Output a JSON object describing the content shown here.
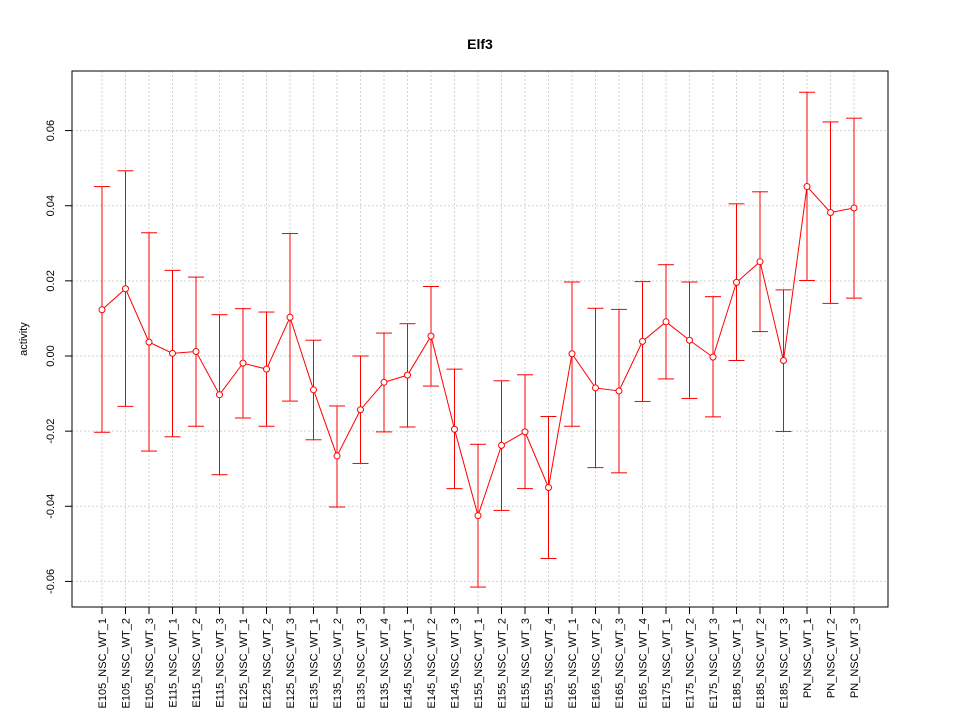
{
  "chart_data": {
    "type": "line",
    "title": "Elf3",
    "xlabel": "",
    "ylabel": "activity",
    "ylim": [
      -0.066,
      0.076
    ],
    "yticks": [
      -0.06,
      -0.04,
      -0.02,
      0.0,
      0.02,
      0.04,
      0.06
    ],
    "ytick_labels": [
      "-0.06",
      "-0.04",
      "-0.02",
      "0.00",
      "0.02",
      "0.04",
      "0.06"
    ],
    "grid": true,
    "error_bars": true,
    "color": "#ff0000",
    "categories": [
      "E105_NSC_WT_1",
      "E105_NSC_WT_2",
      "E105_NSC_WT_3",
      "E115_NSC_WT_1",
      "E115_NSC_WT_2",
      "E115_NSC_WT_3",
      "E125_NSC_WT_1",
      "E125_NSC_WT_2",
      "E125_NSC_WT_3",
      "E135_NSC_WT_1",
      "E135_NSC_WT_2",
      "E135_NSC_WT_3",
      "E135_NSC_WT_4",
      "E145_NSC_WT_1",
      "E145_NSC_WT_2",
      "E145_NSC_WT_3",
      "E155_NSC_WT_1",
      "E155_NSC_WT_2",
      "E155_NSC_WT_3",
      "E155_NSC_WT_4",
      "E165_NSC_WT_1",
      "E165_NSC_WT_2",
      "E165_NSC_WT_3",
      "E165_NSC_WT_4",
      "E175_NSC_WT_1",
      "E175_NSC_WT_2",
      "E175_NSC_WT_3",
      "E185_NSC_WT_1",
      "E185_NSC_WT_2",
      "E185_NSC_WT_3",
      "PN_NSC_WT_1",
      "PN_NSC_WT_2",
      "PN_NSC_WT_3"
    ],
    "values": [
      0.0123,
      0.0179,
      0.0037,
      0.0007,
      0.0012,
      -0.0103,
      -0.0019,
      -0.0035,
      0.0103,
      -0.009,
      -0.0266,
      -0.0143,
      -0.007,
      -0.0051,
      0.0053,
      -0.0195,
      -0.0425,
      -0.0238,
      -0.0202,
      -0.035,
      0.0006,
      -0.0085,
      -0.0093,
      0.0039,
      0.0091,
      0.0042,
      -0.0003,
      0.0196,
      0.0251,
      -0.0012,
      0.0451,
      0.0382,
      0.0394
    ],
    "upper": [
      0.0451,
      0.0493,
      0.0328,
      0.0228,
      0.021,
      0.011,
      0.0126,
      0.0117,
      0.0326,
      0.0042,
      -0.0133,
      0.0,
      0.0061,
      0.0086,
      0.0185,
      -0.0035,
      -0.0235,
      -0.0066,
      -0.005,
      -0.0161,
      0.0197,
      0.0127,
      0.0124,
      0.0198,
      0.0243,
      0.0197,
      0.0158,
      0.0405,
      0.0437,
      0.0176,
      0.0702,
      0.0623,
      0.0633
    ],
    "lower": [
      -0.0203,
      -0.0134,
      -0.0253,
      -0.0215,
      -0.0187,
      -0.0316,
      -0.0165,
      -0.0187,
      -0.012,
      -0.0223,
      -0.0402,
      -0.0286,
      -0.0202,
      -0.0189,
      -0.008,
      -0.0353,
      -0.0615,
      -0.0411,
      -0.0353,
      -0.0539,
      -0.0187,
      -0.0297,
      -0.0311,
      -0.0121,
      -0.0061,
      -0.0113,
      -0.0162,
      -0.0012,
      0.0065,
      -0.0201,
      0.0201,
      0.014,
      0.0154
    ]
  }
}
